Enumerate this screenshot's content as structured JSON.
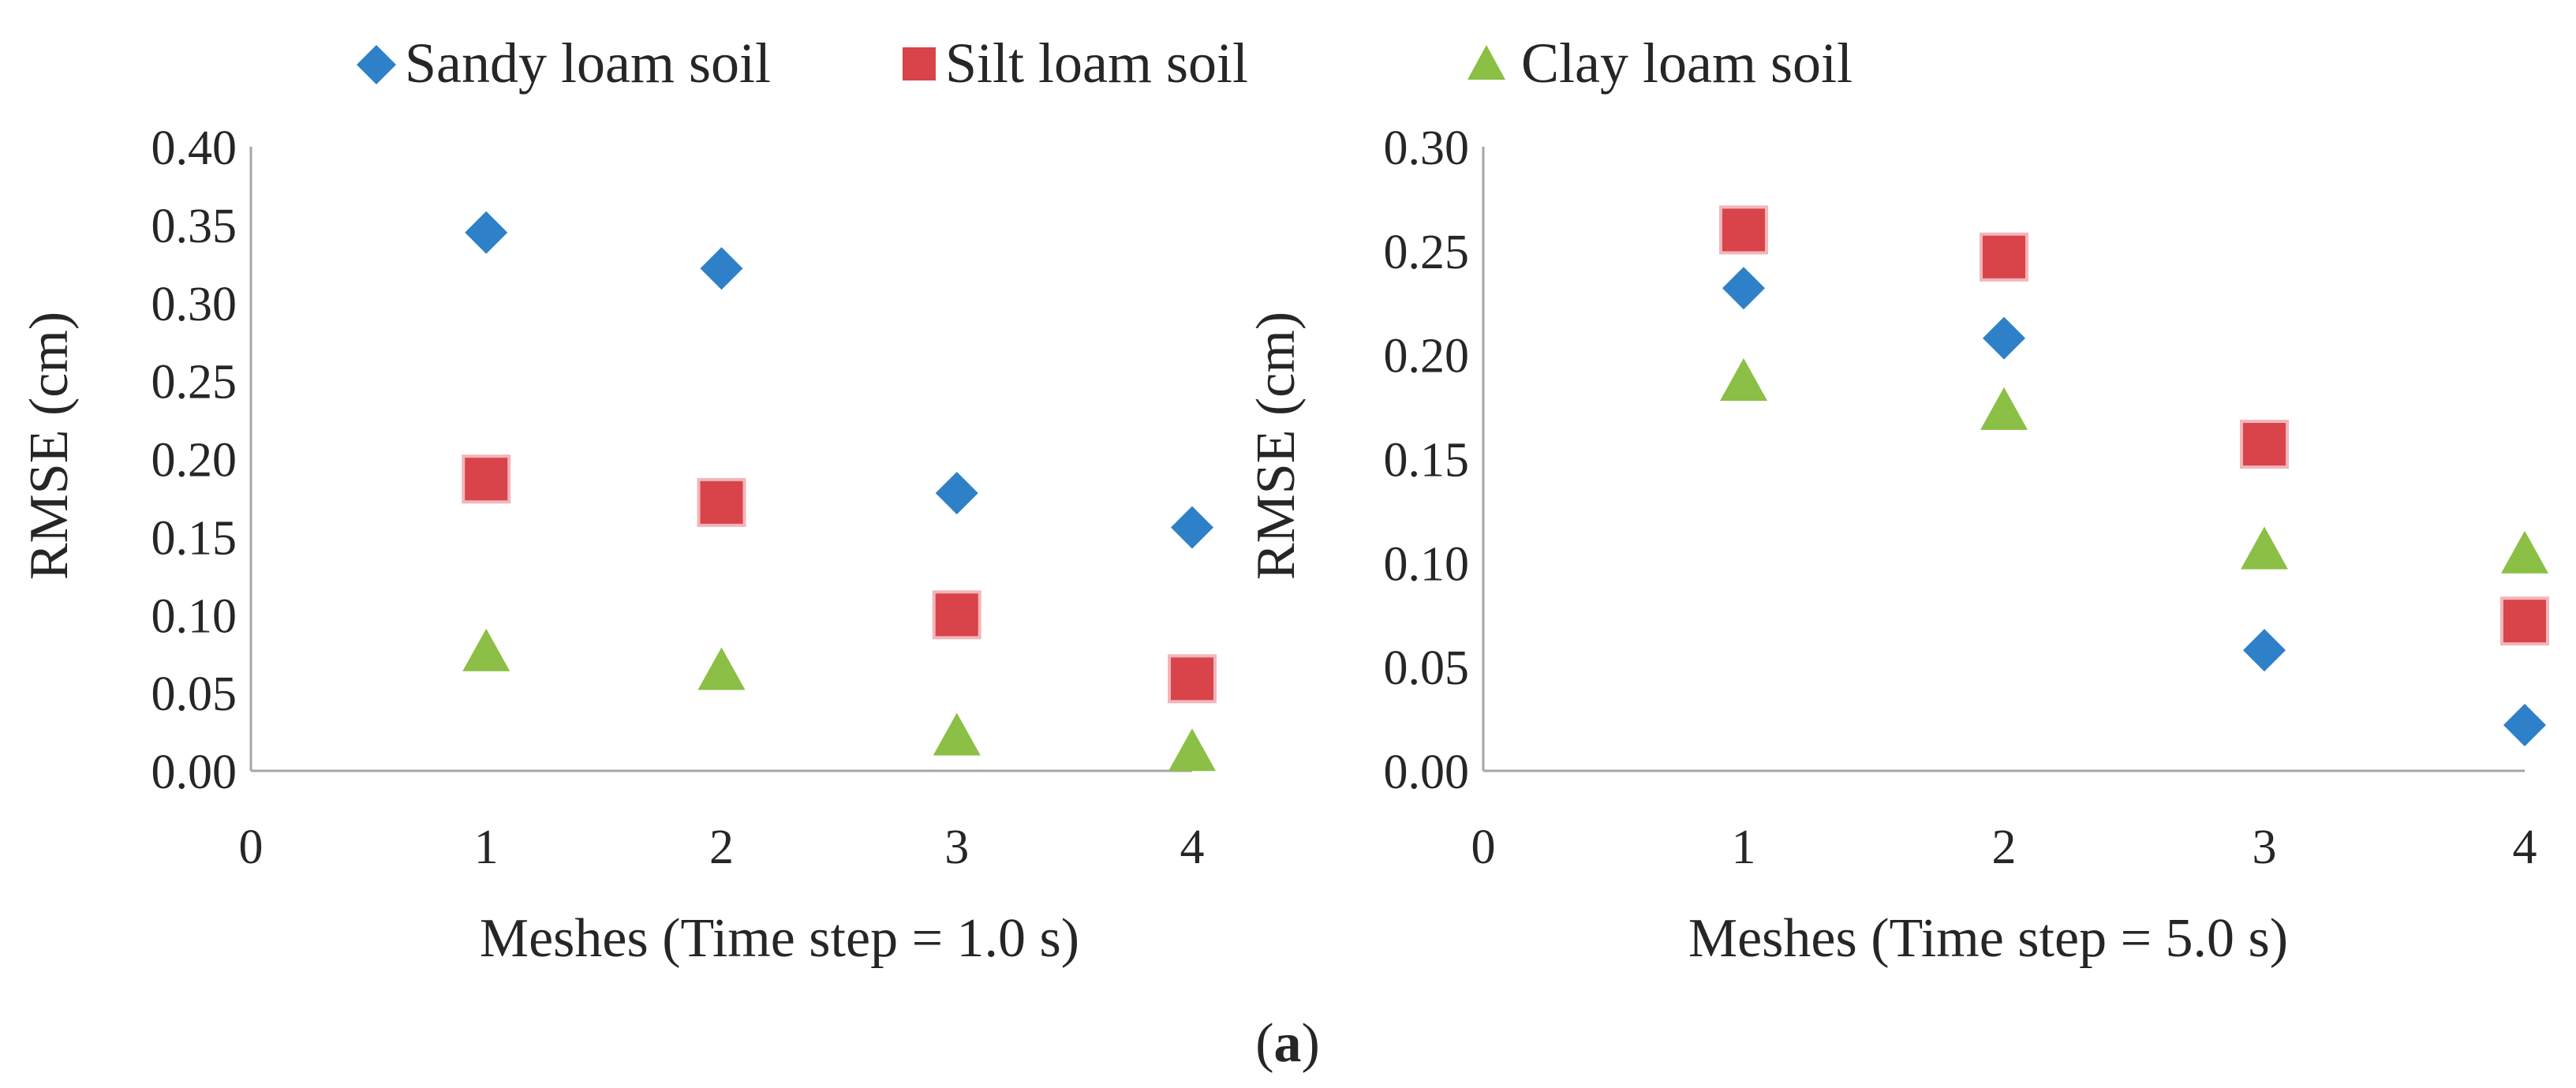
{
  "legend": {
    "items": [
      {
        "label": "Sandy loam soil",
        "marker": "diamond",
        "color": "#2e80c8"
      },
      {
        "label": "Silt loam soil",
        "marker": "square",
        "color": "#d9434a"
      },
      {
        "label": "Clay loam soil",
        "marker": "triangle",
        "color": "#8bbf45"
      }
    ]
  },
  "caption": {
    "prefix": "(",
    "letter": "a",
    "suffix": ")"
  },
  "chart_data": [
    {
      "type": "scatter",
      "xlabel": "Meshes (Time step = 1.0 s)",
      "ylabel": "RMSE (cm)",
      "xlim": [
        0,
        4
      ],
      "ylim": [
        0,
        0.4
      ],
      "x_ticks": [
        "0",
        "1",
        "2",
        "3",
        "4"
      ],
      "y_ticks": [
        "0.00",
        "0.05",
        "0.10",
        "0.15",
        "0.20",
        "0.25",
        "0.30",
        "0.35",
        "0.40"
      ],
      "grid": false,
      "series": [
        {
          "name": "Sandy loam soil",
          "x": [
            1,
            2,
            3,
            4
          ],
          "y": [
            0.345,
            0.322,
            0.178,
            0.156
          ]
        },
        {
          "name": "Silt loam soil",
          "x": [
            1,
            2,
            3,
            4
          ],
          "y": [
            0.187,
            0.172,
            0.1,
            0.059
          ]
        },
        {
          "name": "Clay loam soil",
          "x": [
            1,
            2,
            3,
            4
          ],
          "y": [
            0.076,
            0.064,
            0.022,
            0.012
          ]
        }
      ]
    },
    {
      "type": "scatter",
      "xlabel": "Meshes (Time step = 5.0 s)",
      "ylabel": "RMSE (cm)",
      "xlim": [
        0,
        4
      ],
      "ylim": [
        0,
        0.3
      ],
      "x_ticks": [
        "0",
        "1",
        "2",
        "3",
        "4"
      ],
      "y_ticks": [
        "0.00",
        "0.05",
        "0.10",
        "0.15",
        "0.20",
        "0.25",
        "0.30"
      ],
      "grid": false,
      "series": [
        {
          "name": "Sandy loam soil",
          "x": [
            1,
            2,
            3,
            4
          ],
          "y": [
            0.232,
            0.208,
            0.058,
            0.022
          ]
        },
        {
          "name": "Silt loam soil",
          "x": [
            1,
            2,
            3,
            4
          ],
          "y": [
            0.26,
            0.247,
            0.157,
            0.072
          ]
        },
        {
          "name": "Clay loam soil",
          "x": [
            1,
            2,
            3,
            4
          ],
          "y": [
            0.187,
            0.173,
            0.106,
            0.104
          ]
        }
      ]
    }
  ]
}
